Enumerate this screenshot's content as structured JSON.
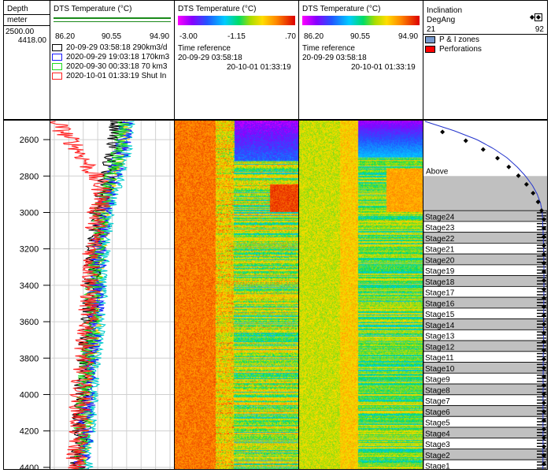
{
  "depth_track": {
    "title": "Depth",
    "unit": "meter",
    "top_value": "2500.00",
    "bottom_value": "4418.00",
    "ticks": [
      2600,
      2800,
      3000,
      3200,
      3400,
      3600,
      3800,
      4000,
      4200,
      4400
    ]
  },
  "track1": {
    "title": "DTS Temperature (°C)",
    "scale_min": "86.20",
    "scale_mid": "90.55",
    "scale_max": "94.90",
    "legend": [
      {
        "label": "20-09-29 03:58:18 290km3/d",
        "color": "#000000"
      },
      {
        "label": "2020-09-29 19:03:18 170km3",
        "color": "#1a1aff"
      },
      {
        "label": "2020-09-30 00:33:18 70 km3",
        "color": "#22dd22"
      },
      {
        "label": "2020-10-01 01:33:19 Shut In",
        "color": "#ff2222"
      }
    ]
  },
  "track2": {
    "title": "DTS Temperature (°C)",
    "scale_min": "-3.00",
    "scale_mid": "-1.15",
    "scale_max": ".70",
    "ref_label": "Time reference",
    "time_start": "20-09-29 03:58:18",
    "time_end": "20-10-01 01:33:19"
  },
  "track3": {
    "title": "DTS Temperature (°C)",
    "scale_min": "86.20",
    "scale_mid": "90.55",
    "scale_max": "94.90",
    "ref_label": "Time reference",
    "time_start": "20-09-29 03:58:18",
    "time_end": "20-10-01 01:33:19"
  },
  "track4": {
    "title": "Inclination",
    "unit": "DegAng",
    "scale_min": "21",
    "scale_max": "92",
    "legend": [
      {
        "label": "P & I zones",
        "color": "#7799cc"
      },
      {
        "label": "Perforations",
        "color": "#ff0000"
      }
    ],
    "above_label": "Above",
    "stages": [
      "Stage24",
      "Stage23",
      "Stage22",
      "Stage21",
      "Stage20",
      "Stage19",
      "Stage18",
      "Stage17",
      "Stage16",
      "Stage15",
      "Stage14",
      "Stage13",
      "Stage12",
      "Stage11",
      "Stage10",
      "Stage9",
      "Stage8",
      "Stage7",
      "Stage6",
      "Stage5",
      "Stage4",
      "Stage3",
      "Stage2",
      "Stage1"
    ]
  },
  "colors": {
    "zone_gray": "#c0c0c0",
    "profile_blue": "#2233cc",
    "grid": "#d0d0d0"
  },
  "chart_data": {
    "type": "line",
    "y_axis": {
      "label": "Depth",
      "unit": "meter",
      "range": [
        2500,
        4418
      ]
    },
    "x_range_temperature": [
      86.2,
      94.9
    ],
    "x_range_delta": [
      -3.0,
      0.7
    ],
    "x_range_inclination": [
      21,
      92
    ],
    "series": [
      {
        "name": "20-09-29 03:58:18 290km3/d",
        "depth": [
          2500,
          2600,
          2700,
          2800,
          2900,
          3000,
          3100,
          3200,
          3300,
          3400,
          3500,
          3600,
          3700,
          3800,
          3900,
          4000,
          4100,
          4200,
          4300,
          4418
        ],
        "temperature": [
          91.0,
          90.8,
          90.6,
          90.2,
          89.9,
          89.5,
          89.4,
          89.2,
          89.1,
          89.0,
          88.9,
          88.8,
          88.7,
          88.5,
          88.4,
          88.3,
          88.2,
          88.1,
          88.0,
          87.9
        ]
      },
      {
        "name": "2020-09-29 19:03:18 170km3",
        "depth": [
          2500,
          2600,
          2700,
          2800,
          2900,
          3000,
          3100,
          3200,
          3300,
          3400,
          3500,
          3600,
          3700,
          3800,
          3900,
          4000,
          4100,
          4200,
          4300,
          4418
        ],
        "temperature": [
          91.5,
          91.4,
          91.1,
          90.7,
          90.3,
          89.9,
          89.8,
          89.6,
          89.5,
          89.4,
          89.3,
          89.2,
          89.1,
          88.9,
          88.8,
          88.7,
          88.6,
          88.5,
          88.4,
          88.3
        ]
      },
      {
        "name": "2020-09-30 00:33:18 70 km3",
        "depth": [
          2500,
          2600,
          2700,
          2800,
          2900,
          3000,
          3100,
          3200,
          3300,
          3400,
          3500,
          3600,
          3700,
          3800,
          3900,
          4000,
          4100,
          4200,
          4300,
          4418
        ],
        "temperature": [
          91.3,
          91.2,
          90.9,
          90.5,
          90.1,
          89.7,
          89.6,
          89.4,
          89.3,
          89.2,
          89.1,
          89.0,
          88.9,
          88.7,
          88.6,
          88.5,
          88.4,
          88.3,
          88.2,
          88.1
        ]
      },
      {
        "name": "2020-10-01 01:33:19 Shut In",
        "depth": [
          2500,
          2550,
          2600,
          2650,
          2700,
          2750,
          2800,
          2850,
          2900,
          2950,
          3000,
          3100,
          3200,
          3300,
          3400,
          3500,
          3600,
          3700,
          3800,
          3900,
          4000,
          4100,
          4200,
          4300,
          4418
        ],
        "temperature": [
          86.4,
          86.8,
          87.4,
          88.0,
          88.4,
          88.8,
          89.2,
          89.6,
          89.9,
          89.7,
          89.4,
          89.3,
          89.1,
          89.0,
          88.9,
          88.8,
          88.7,
          88.6,
          88.4,
          88.3,
          88.2,
          88.1,
          88.0,
          87.9,
          87.8
        ]
      },
      {
        "name": "Inclination",
        "depth": [
          2500,
          2550,
          2600,
          2650,
          2700,
          2750,
          2800,
          2850,
          2900,
          2950,
          3000,
          3100,
          3200,
          3300,
          3400,
          3600,
          3800,
          4000,
          4200,
          4418
        ],
        "inclination": [
          21,
          38,
          52,
          62,
          70,
          76,
          81,
          85,
          88,
          90,
          91,
          91.5,
          91.8,
          92,
          92,
          91.8,
          91.6,
          91.5,
          91.5,
          91.4
        ]
      }
    ]
  }
}
